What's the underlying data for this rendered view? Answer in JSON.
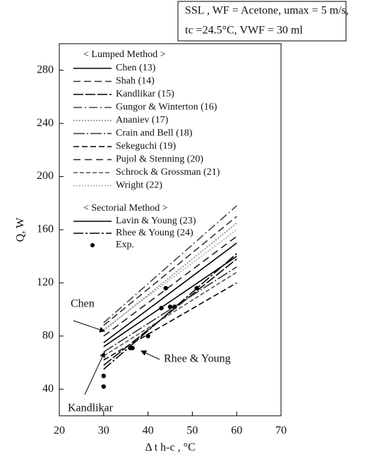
{
  "chart_data": {
    "type": "line",
    "title": [
      "SSL , WF = Acetone, umax = 5 m/s,",
      "tc =24.5°C, VWF = 30 ml"
    ],
    "xlabel": "Δ t h-c , °C",
    "ylabel": "Q, W",
    "legend_headers": [
      "< Lumped Method >",
      "< Sectorial Method >"
    ],
    "x": [
      30,
      60
    ],
    "xlim": [
      20,
      70
    ],
    "xticks": [
      20,
      30,
      40,
      50,
      60,
      70
    ],
    "ylim": [
      20,
      300
    ],
    "yticks": [
      40,
      80,
      120,
      160,
      200,
      240,
      280
    ],
    "series": [
      {
        "name": "Chen (13)",
        "color": "#000",
        "dash": "none",
        "values": [
          72,
          140
        ]
      },
      {
        "name": "Shah (14)",
        "color": "#333",
        "dash": "10 5",
        "values": [
          88,
          170
        ]
      },
      {
        "name": "Kandlikar (15)",
        "color": "#000",
        "dash": "14 3",
        "values": [
          58,
          138
        ]
      },
      {
        "name": "Gungor & Winterton (16)",
        "color": "#444",
        "dash": "12 4 2 4",
        "values": [
          90,
          178
        ]
      },
      {
        "name": "Ananiev (17)",
        "color": "#888",
        "dash": "2 2",
        "values": [
          84,
          165
        ]
      },
      {
        "name": "Crain and Bell (18)",
        "color": "#333",
        "dash": "16 3 2 3",
        "values": [
          68,
          132
        ]
      },
      {
        "name": "Sekeguchi (19)",
        "color": "#000",
        "dash": "8 4",
        "values": [
          62,
          120
        ]
      },
      {
        "name": "Pujol & Stenning (20)",
        "color": "#222",
        "dash": "10 6",
        "values": [
          80,
          155
        ]
      },
      {
        "name": "Schrock & Grossman (21)",
        "color": "#555",
        "dash": "6 3",
        "values": [
          65,
          128
        ]
      },
      {
        "name": "Wright (22)",
        "color": "#aaa",
        "dash": "2 2",
        "values": [
          85,
          160
        ]
      },
      {
        "name": "Lavin & Young (23)",
        "color": "#000",
        "dash": "none",
        "values": [
          75,
          150
        ]
      },
      {
        "name": "Rhee & Young (24)",
        "color": "#000",
        "dash": "14 3 3 3",
        "values": [
          55,
          142
        ]
      }
    ],
    "points": {
      "name": "Exp.",
      "color": "#000",
      "x": [
        30,
        30,
        36,
        36.5,
        40,
        43,
        44,
        45,
        46,
        51
      ],
      "values": [
        50,
        42,
        71,
        71,
        80,
        101,
        116,
        102,
        102,
        116
      ]
    },
    "annotations": [
      "Chen",
      "Rhee & Young",
      "Kandlikar"
    ]
  }
}
